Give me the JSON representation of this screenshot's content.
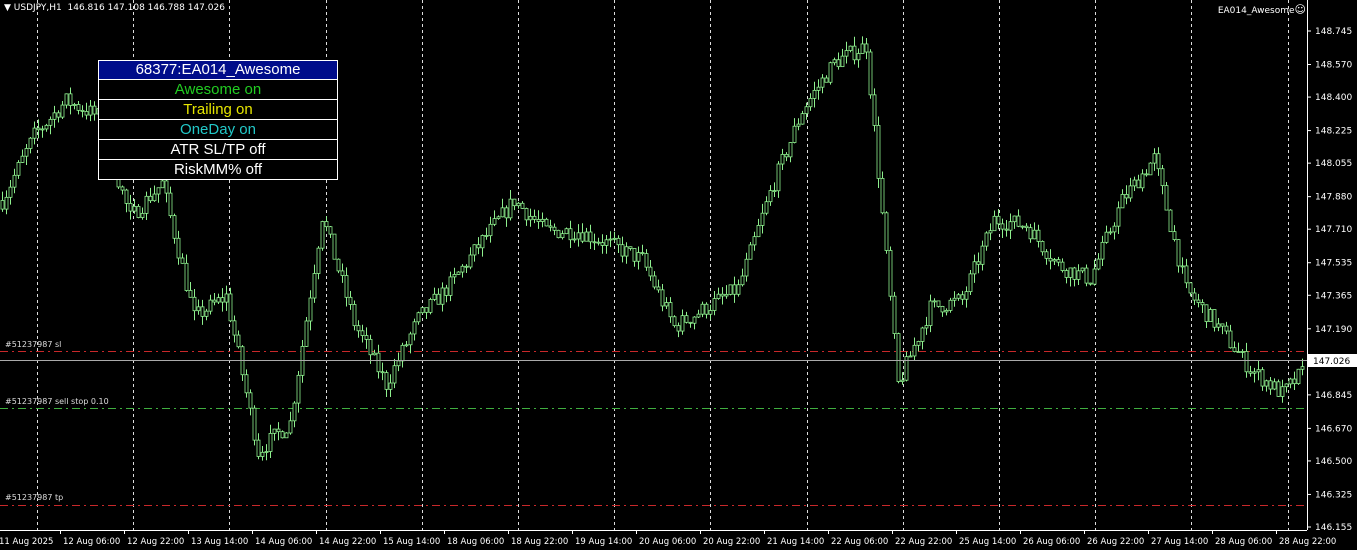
{
  "header": {
    "arrow_icon": "triangle-down-icon",
    "symbol": "USDJPY,H1",
    "ohlc": "146.816 147.108 146.788 147.026"
  },
  "ea_label": {
    "name": "EA014_Awesome",
    "icon": "smiley-icon"
  },
  "panel": {
    "title": "68377:EA014_Awesome",
    "rows": [
      {
        "text": "Awesome  on",
        "color": "#22cc22"
      },
      {
        "text": "Trailing  on",
        "color": "#e6e600"
      },
      {
        "text": "OneDay on",
        "color": "#22c8c8"
      },
      {
        "text": "ATR SL/TP off",
        "color": "#ffffff"
      },
      {
        "text": "RiskMM%  off",
        "color": "#ffffff"
      }
    ],
    "title_bg": "#000c8a"
  },
  "orders": [
    {
      "label": "#51237987 sl",
      "price": 147.074,
      "color": "#c8282a",
      "style": "dash-dot"
    },
    {
      "label": "#51237987 sell stop 0.10",
      "price": 146.776,
      "color": "#3fae3f",
      "style": "dash-dot"
    },
    {
      "label": "#51237987 tp",
      "price": 146.27,
      "color": "#c8282a",
      "style": "dash-dot"
    }
  ],
  "chart_data": {
    "type": "candlestick",
    "symbol": "USDJPY",
    "timeframe": "H1",
    "current_price": 147.026,
    "current_price_label": "147.026",
    "candle_color": "#8ef08e",
    "ylim": [
      146.155,
      148.745
    ],
    "y_ticks": [
      "148.745",
      "148.570",
      "148.400",
      "148.225",
      "148.055",
      "147.880",
      "147.710",
      "147.535",
      "147.365",
      "147.190",
      "146.845",
      "146.670",
      "146.500",
      "146.325",
      "146.155"
    ],
    "x_ticks": [
      "11 Aug 2025",
      "12 Aug 06:00",
      "12 Aug 22:00",
      "13 Aug 14:00",
      "14 Aug 06:00",
      "14 Aug 22:00",
      "15 Aug 14:00",
      "18 Aug 06:00",
      "18 Aug 22:00",
      "19 Aug 14:00",
      "20 Aug 06:00",
      "20 Aug 22:00",
      "21 Aug 14:00",
      "22 Aug 06:00",
      "22 Aug 22:00",
      "25 Aug 14:00",
      "26 Aug 06:00",
      "26 Aug 22:00",
      "27 Aug 14:00",
      "28 Aug 06:00",
      "28 Aug 22:00"
    ],
    "grid": "vertical dashed",
    "close_approx_every_8_bars": [
      147.86,
      148.2,
      148.38,
      148.3,
      147.77,
      147.95,
      147.25,
      147.36,
      146.55,
      146.7,
      147.78,
      147.22,
      146.9,
      147.24,
      147.42,
      147.65,
      147.86,
      147.7,
      147.7,
      147.63,
      147.55,
      147.2,
      147.3,
      147.4,
      147.9,
      148.33,
      148.58,
      148.67,
      146.9,
      147.3,
      147.34,
      147.76,
      147.73,
      147.52,
      147.45,
      147.86,
      148.08,
      147.39,
      147.2,
      146.98,
      146.85,
      147.026
    ]
  }
}
